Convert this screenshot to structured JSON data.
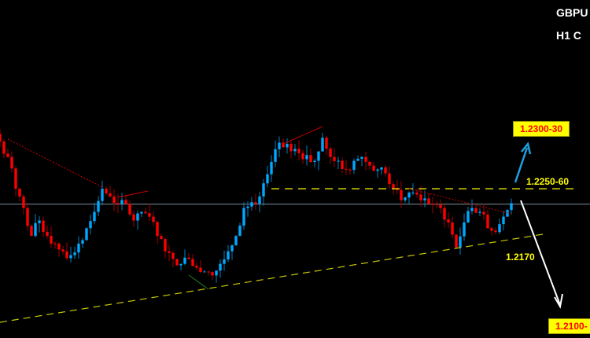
{
  "header": {
    "symbol": "GBPU",
    "timeframe": "H1 C"
  },
  "colors": {
    "bull": "#00a8ff",
    "bear": "#ff0000",
    "level": "#ffff00",
    "current_price_line": "#8090a0",
    "up_arrow": "#1ea0e0",
    "down_arrow": "#ffffff"
  },
  "chart_data": {
    "type": "candlestick",
    "title": "",
    "ylim": [
      1.21,
      1.2451
    ],
    "closes": [
      1.2304,
      1.2288,
      1.2255,
      1.2235,
      1.2206,
      1.2222,
      1.2206,
      1.2198,
      1.219,
      1.2186,
      1.2198,
      1.2214,
      1.2231,
      1.2255,
      1.2247,
      1.2239,
      1.2239,
      1.2222,
      1.2231,
      1.2226,
      1.2206,
      1.219,
      1.2182,
      1.2177,
      1.2182,
      1.2173,
      1.2169,
      1.2165,
      1.2177,
      1.219,
      1.2206,
      1.2235,
      1.2241,
      1.2247,
      1.227,
      1.2296,
      1.2298,
      1.2294,
      1.2292,
      1.229,
      1.2284,
      1.2308,
      1.2288,
      1.2284,
      1.2275,
      1.2284,
      1.2288,
      1.2279,
      1.2275,
      1.2271,
      1.2255,
      1.2243,
      1.2251,
      1.2249,
      1.2245,
      1.2239,
      1.2235,
      1.222,
      1.2194,
      1.222,
      1.2235,
      1.2231,
      1.2214,
      1.221,
      1.2226,
      1.224
    ],
    "current_price": 1.2239,
    "resistance": 1.2255,
    "annotations": {
      "target_up": "1.2300-30",
      "resistance_label": "1.2250-60",
      "support_label": "1.2170",
      "target_down": "1.2100-"
    }
  }
}
